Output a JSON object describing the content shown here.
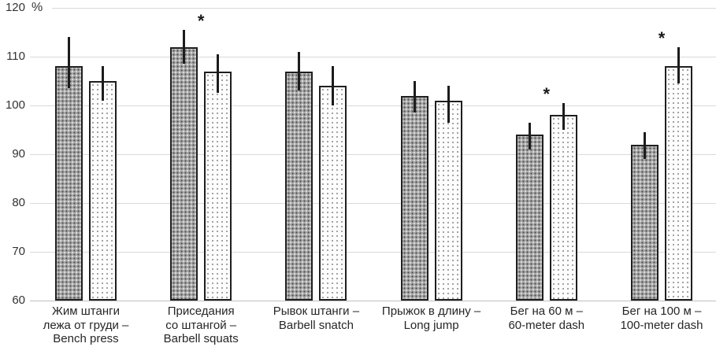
{
  "chart_data": {
    "type": "bar",
    "title": "",
    "xlabel": "",
    "ylabel": "%",
    "ylim": [
      60,
      120
    ],
    "yticks": [
      60,
      70,
      80,
      90,
      100,
      110,
      120
    ],
    "grid": true,
    "legend": "none",
    "marker_symbol": "*",
    "categories": [
      [
        "Жим штанги",
        "лежа от груди –",
        "Bench press"
      ],
      [
        "Приседания",
        "со штангой –",
        "Barbell squats"
      ],
      [
        "Рывок штанги –",
        "Barbell snatch"
      ],
      [
        "Прыжок в длину –",
        "Long jump"
      ],
      [
        "Бег на 60 м –",
        "60-meter dash"
      ],
      [
        "Бег на 100 м –",
        "100-meter dash"
      ]
    ],
    "series": [
      {
        "style": "dark-dotted-gray",
        "values": [
          108,
          112,
          107,
          102,
          94,
          92
        ],
        "err_low": [
          103.5,
          108.5,
          103,
          98.5,
          91,
          89
        ],
        "err_high": [
          114,
          115.5,
          111,
          105,
          96.5,
          94.5
        ]
      },
      {
        "style": "white-sparse-dots",
        "values": [
          105,
          107,
          104,
          101,
          98,
          108
        ],
        "err_low": [
          101,
          102.5,
          100,
          96.5,
          95,
          104.5
        ],
        "err_high": [
          108,
          110.5,
          108,
          104,
          100.5,
          112
        ]
      }
    ],
    "significance_markers": [
      {
        "group_index": 1
      },
      {
        "group_index": 4
      },
      {
        "group_index": 5
      }
    ]
  }
}
